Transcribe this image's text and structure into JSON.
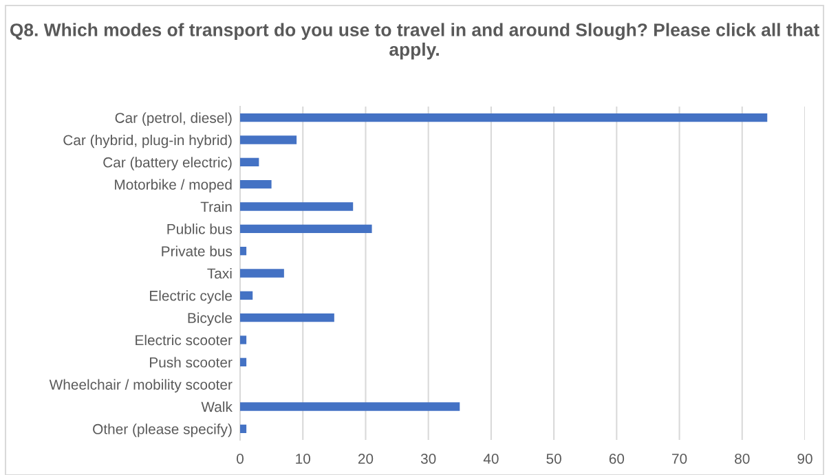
{
  "chart_data": {
    "type": "bar",
    "orientation": "horizontal",
    "title": "Q8. Which modes of transport do you use to travel in and around Slough? Please click all that apply.",
    "categories": [
      "Car (petrol, diesel)",
      "Car (hybrid, plug-in hybrid)",
      "Car (battery electric)",
      "Motorbike / moped",
      "Train",
      "Public bus",
      "Private bus",
      "Taxi",
      "Electric cycle",
      "Bicycle",
      "Electric scooter",
      "Push scooter",
      "Wheelchair / mobility scooter",
      "Walk",
      "Other (please specify)"
    ],
    "values": [
      84,
      9,
      3,
      5,
      18,
      21,
      1,
      7,
      2,
      15,
      1,
      1,
      0,
      35,
      1
    ],
    "color": "#4472c4",
    "xlim": [
      0,
      90
    ],
    "xticks": [
      0,
      10,
      20,
      30,
      40,
      50,
      60,
      70,
      80,
      90
    ],
    "grid": "x",
    "legend": false
  }
}
